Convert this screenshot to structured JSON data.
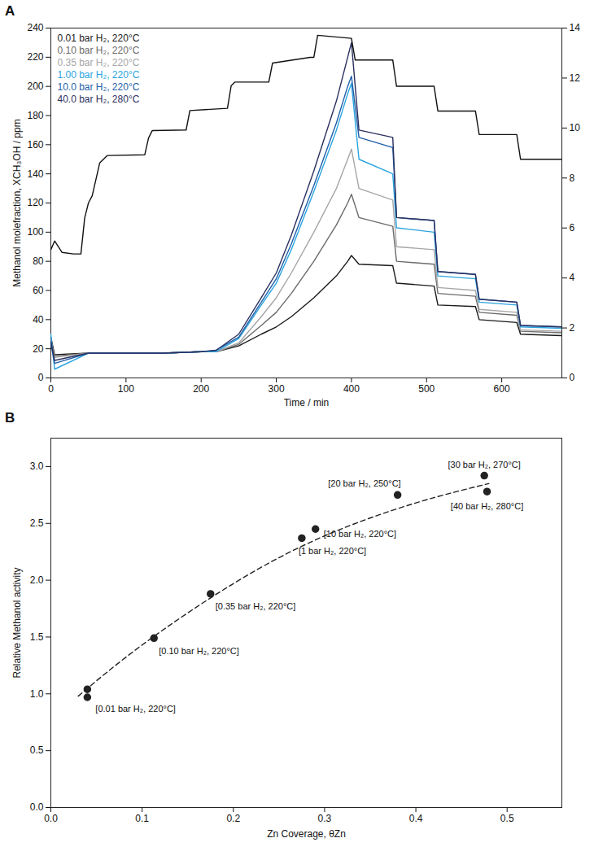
{
  "chart_data": [
    {
      "type": "line",
      "title": "A",
      "x_label": "Time / min",
      "y_label": "Methanol molefraction, XCH₃OH / ppm",
      "x": [
        0,
        5,
        50,
        100,
        150,
        200,
        220,
        250,
        280,
        300,
        320,
        350,
        380,
        395,
        400,
        410,
        455,
        460,
        510,
        515,
        565,
        570,
        620,
        625,
        680
      ],
      "xlim": [
        0,
        680
      ],
      "xticks": [
        0,
        100,
        200,
        300,
        400,
        500,
        600
      ],
      "ylim": [
        0,
        240
      ],
      "yticks": [
        0,
        20,
        40,
        60,
        80,
        100,
        120,
        140,
        160,
        180,
        200,
        220,
        240
      ],
      "y2lim": [
        0,
        14
      ],
      "y2ticks": [
        0,
        2,
        4,
        6,
        8,
        10,
        12,
        14
      ],
      "legend": "top-left",
      "grid": false,
      "series": [
        {
          "name": "0.01 bar H₂, 220°C",
          "color": "#1a1a1a",
          "values": [
            28,
            16,
            17,
            17,
            17,
            18,
            18,
            22,
            30,
            35,
            42,
            55,
            70,
            80,
            84,
            78,
            77,
            65,
            63,
            50,
            49,
            40,
            38,
            30,
            29
          ]
        },
        {
          "name": "0.10 bar H₂, 220°C",
          "color": "#6b6b6b",
          "values": [
            26,
            15,
            17,
            17,
            17,
            18,
            18,
            23,
            36,
            45,
            58,
            80,
            105,
            120,
            126,
            110,
            104,
            80,
            78,
            58,
            56,
            45,
            43,
            32,
            31
          ]
        },
        {
          "name": "0.35 bar H₂, 220°C",
          "color": "#a6a6a6",
          "values": [
            25,
            14,
            17,
            17,
            17,
            18,
            18,
            24,
            42,
            55,
            72,
            100,
            130,
            150,
            157,
            130,
            122,
            90,
            88,
            62,
            60,
            47,
            45,
            33,
            32
          ]
        },
        {
          "name": "1.00 bar H₂, 220°C",
          "color": "#2aa4e0",
          "values": [
            30,
            6,
            17,
            17,
            17,
            18,
            18,
            27,
            50,
            65,
            88,
            128,
            170,
            195,
            202,
            150,
            140,
            103,
            100,
            70,
            68,
            52,
            50,
            35,
            34
          ]
        },
        {
          "name": "10.0 bar H₂, 220°C",
          "color": "#1f5fa8",
          "values": [
            24,
            10,
            17,
            17,
            17,
            18,
            19,
            28,
            52,
            68,
            92,
            132,
            175,
            200,
            207,
            165,
            158,
            110,
            108,
            73,
            71,
            54,
            52,
            36,
            35
          ]
        },
        {
          "name": "40.0 bar H₂, 280°C",
          "color": "#2b3060",
          "values": [
            25,
            12,
            17,
            17,
            17,
            18,
            19,
            30,
            55,
            72,
            98,
            142,
            190,
            220,
            230,
            170,
            165,
            110,
            108,
            73,
            71,
            54,
            52,
            36,
            35
          ]
        },
        {
          "axis": "y2",
          "color": "#111111",
          "x": [
            0,
            5,
            15,
            30,
            40,
            45,
            50,
            55,
            65,
            75,
            125,
            130,
            135,
            180,
            185,
            235,
            240,
            245,
            290,
            295,
            345,
            350,
            355,
            400,
            405,
            455,
            460,
            510,
            515,
            565,
            570,
            620,
            625,
            680
          ],
          "values": [
            5.13,
            5.48,
            5.02,
            4.96,
            4.96,
            6.4,
            7.0,
            7.29,
            8.6,
            8.9,
            8.93,
            9.6,
            9.9,
            9.92,
            10.7,
            10.79,
            11.7,
            11.84,
            11.84,
            12.6,
            12.83,
            12.83,
            13.71,
            13.59,
            12.72,
            12.72,
            11.67,
            11.67,
            10.68,
            10.68,
            9.74,
            9.74,
            8.75,
            8.75
          ]
        }
      ]
    },
    {
      "type": "scatter",
      "title": "B",
      "x_label": "Zn Coverage, θZn",
      "y_label": "Relative Methanol activity",
      "xlim": [
        0,
        0.56
      ],
      "xticks": [
        {
          "value": 0,
          "label": "0.0"
        },
        {
          "value": 0.1,
          "label": "0.1"
        },
        {
          "value": 0.2,
          "label": "0.2"
        },
        {
          "value": 0.3,
          "label": "0.3"
        },
        {
          "value": 0.4,
          "label": "0.4"
        },
        {
          "value": 0.5,
          "label": "0.5"
        }
      ],
      "ylim": [
        0,
        3.25
      ],
      "yticks": [
        {
          "value": 0,
          "label": "0.0"
        },
        {
          "value": 0.5,
          "label": "0.5"
        },
        {
          "value": 1,
          "label": "1.0"
        },
        {
          "value": 1.5,
          "label": "1.5"
        },
        {
          "value": 2,
          "label": "2.0"
        },
        {
          "value": 2.5,
          "label": "2.5"
        },
        {
          "value": 3,
          "label": "3.0"
        }
      ],
      "grid": false,
      "series": [
        {
          "type": "line",
          "line_style": "dashed",
          "color": "#222222",
          "x": [
            0.03,
            0.1,
            0.2,
            0.3,
            0.4,
            0.48
          ],
          "values": [
            0.98,
            1.43,
            1.97,
            2.39,
            2.68,
            2.85
          ]
        },
        {
          "type": "scatter",
          "marker": "circle",
          "color": "#222222",
          "x": [
            0.04,
            0.04,
            0.113,
            0.175,
            0.275,
            0.29,
            0.38,
            0.475,
            0.478
          ],
          "values": [
            1.04,
            0.97,
            1.49,
            1.88,
            2.37,
            2.45,
            2.75,
            2.92,
            2.78
          ],
          "point_labels": [
            null,
            "[0.01 bar H₂, 220°C]",
            "[0.10 bar H₂, 220°C]",
            "[0.35 bar H₂, 220°C]",
            "[1 bar H₂, 220°C]",
            "[10 bar H₂, 220°C]",
            "[20 bar H₂, 250°C]",
            "[30 bar H₂, 270°C]",
            "[40 bar H₂, 280°C]"
          ]
        }
      ]
    }
  ]
}
